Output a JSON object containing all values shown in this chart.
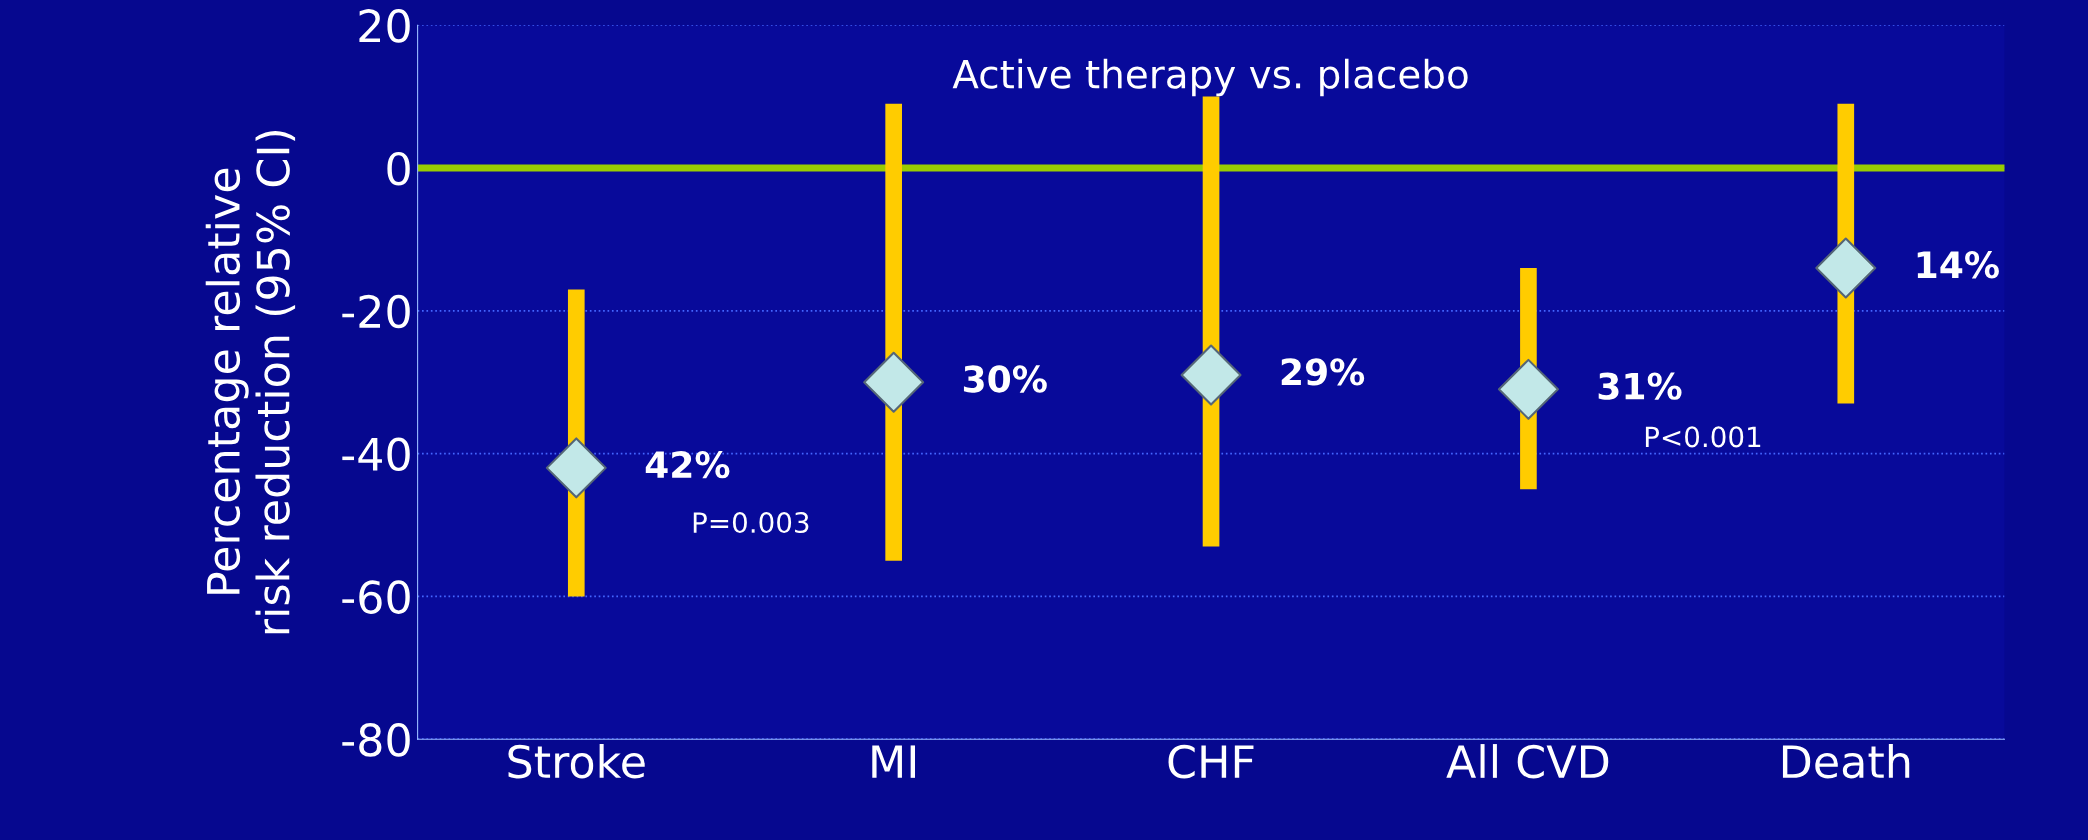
{
  "chart_data": {
    "type": "scatter",
    "title": "Active therapy vs. placebo",
    "ylabel": "Percentage relative\nrisk reduction (95% CI)",
    "categories": [
      "Stroke",
      "MI",
      "CHF",
      "All CVD",
      "Death"
    ],
    "series": [
      {
        "color": "#c2e8e8",
        "values": [
          -42,
          -30,
          -29,
          -31,
          -14
        ],
        "errors": [
          [
            -60,
            -17
          ],
          [
            -55,
            9
          ],
          [
            -53,
            10
          ],
          [
            -45,
            -14
          ],
          [
            -33,
            9
          ]
        ]
      }
    ],
    "annotations": [
      "42%",
      "30%",
      "29%",
      "31%",
      "14%",
      "P=0.003",
      "P<0.001"
    ],
    "ref_lines": [
      {
        "axis": "y",
        "value": 0,
        "color": "#99cc00"
      }
    ],
    "ylim": [
      -80,
      20
    ],
    "yticks": [
      20,
      0,
      -20,
      -40,
      -60,
      -80
    ],
    "grid": "y",
    "marker": "diamond",
    "legend": false
  }
}
